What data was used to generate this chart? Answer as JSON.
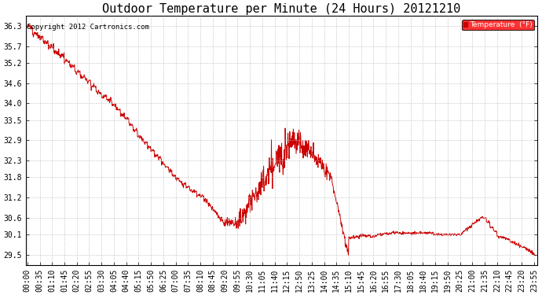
{
  "title": "Outdoor Temperature per Minute (24 Hours) 20121210",
  "copyright": "Copyright 2012 Cartronics.com",
  "legend_label": "Temperature  (°F)",
  "yticks": [
    29.5,
    30.1,
    30.6,
    31.2,
    31.8,
    32.3,
    32.9,
    33.5,
    34.0,
    34.6,
    35.2,
    35.7,
    36.3
  ],
  "ylim": [
    29.2,
    36.6
  ],
  "line_color": "#cc0000",
  "background_color": "#ffffff",
  "grid_color": "#bbbbbb",
  "title_fontsize": 11,
  "copyright_fontsize": 6.5,
  "tick_fontsize": 7,
  "xtick_interval": 35
}
